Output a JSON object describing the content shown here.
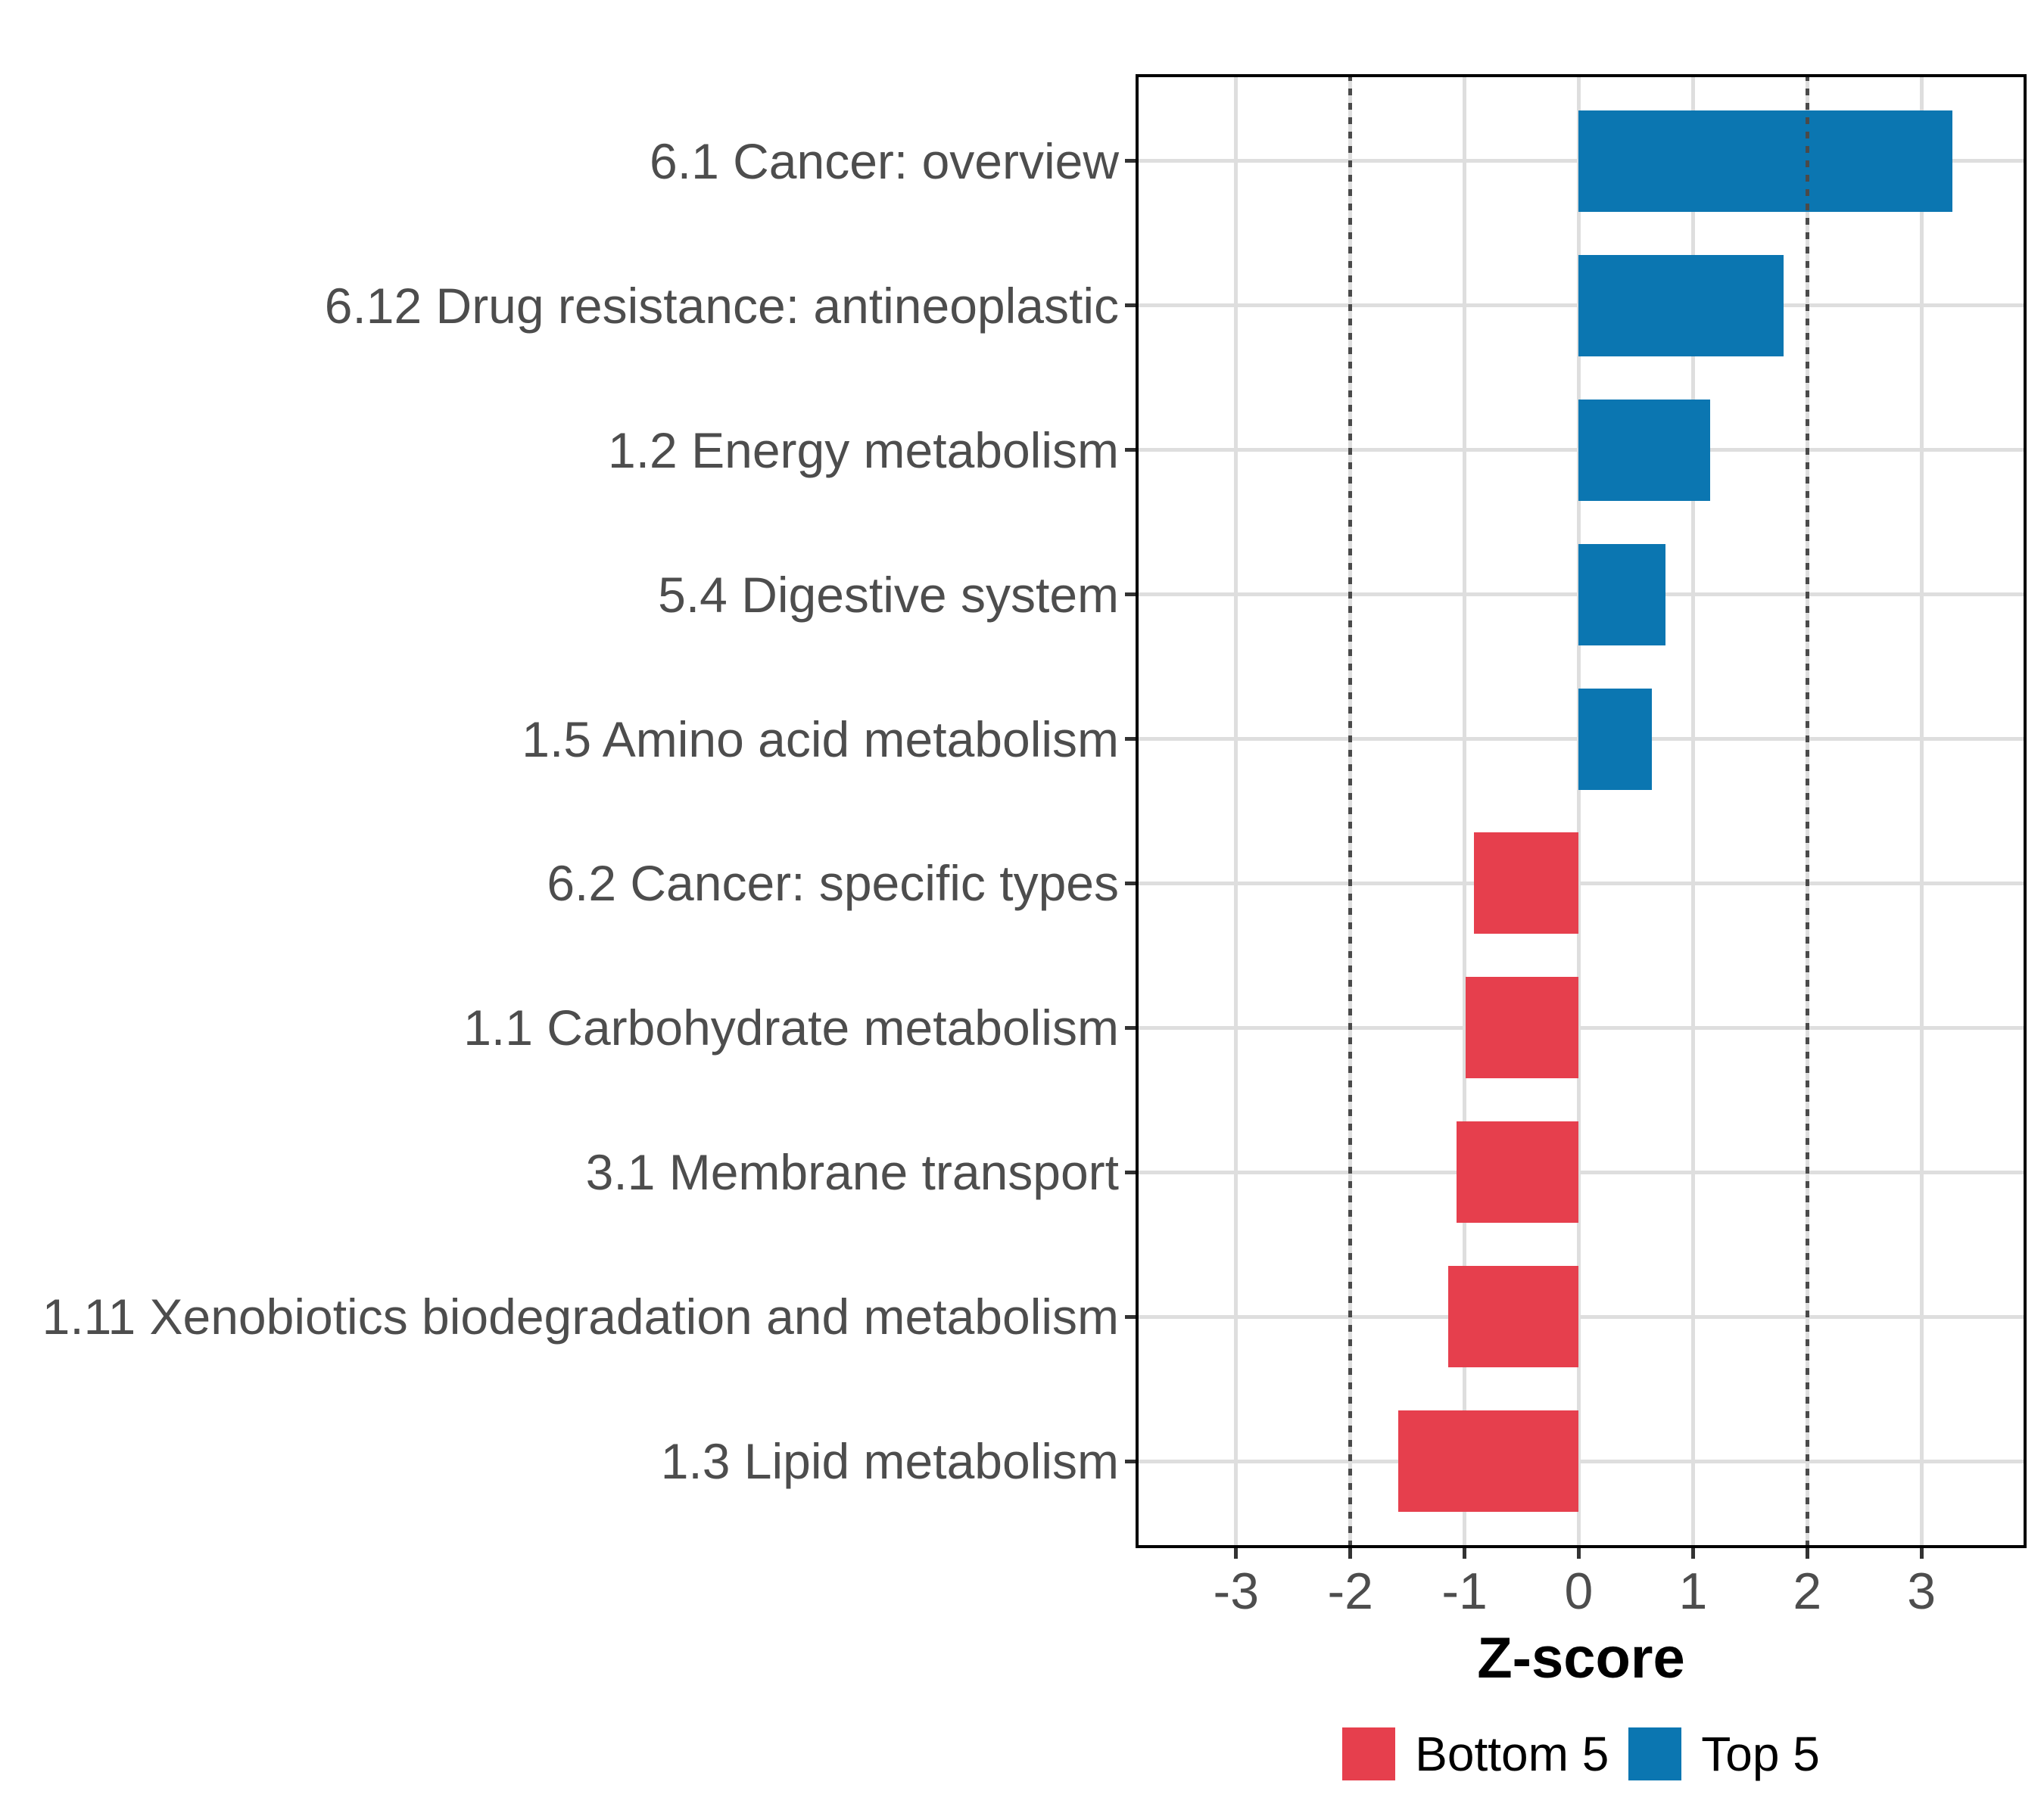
{
  "figure": {
    "background": "#ffffff"
  },
  "colors": {
    "grid": "#DEDEDE",
    "panel_border": "#000000",
    "reference_line": "#4A4A4A",
    "axis_text": "#4D4D4D",
    "tick_mark": "#333333",
    "axis_title": "#000000",
    "legend_text": "#000000"
  },
  "chart_data": {
    "type": "bar",
    "orientation": "horizontal",
    "title": "",
    "xlabel": "Z-score",
    "ylabel": "",
    "categories": [
      "6.1 Cancer: overview",
      "6.12 Drug resistance: antineoplastic",
      "1.2 Energy metabolism",
      "5.4 Digestive system",
      "1.5 Amino acid metabolism",
      "6.2 Cancer: specific types",
      "1.1 Carbohydrate metabolism",
      "3.1 Membrane transport",
      "1.11 Xenobiotics biodegradation and metabolism",
      "1.3 Lipid metabolism"
    ],
    "values": [
      3.27,
      1.79,
      1.15,
      0.76,
      0.64,
      -0.92,
      -0.99,
      -1.07,
      -1.14,
      -1.58
    ],
    "groups": [
      "Top 5",
      "Top 5",
      "Top 5",
      "Top 5",
      "Top 5",
      "Bottom 5",
      "Bottom 5",
      "Bottom 5",
      "Bottom 5",
      "Bottom 5"
    ],
    "group_colors": {
      "Top 5": "#0B76B1",
      "Bottom 5": "#E63F4D"
    },
    "x_ticks": [
      "-3",
      "-2",
      "-1",
      "0",
      "1",
      "2",
      "3"
    ],
    "x_tick_values": [
      -3,
      -2,
      -1,
      0,
      1,
      2,
      3
    ],
    "xlim": [
      -3.88,
      3.92
    ],
    "grid": true,
    "reference_lines": {
      "values": [
        -2,
        2
      ],
      "style": "dotted"
    },
    "legend": {
      "position": "bottom",
      "entries": [
        {
          "label": "Bottom 5",
          "color": "#E63F4D"
        },
        {
          "label": "Top 5",
          "color": "#0B76B1"
        }
      ]
    }
  }
}
